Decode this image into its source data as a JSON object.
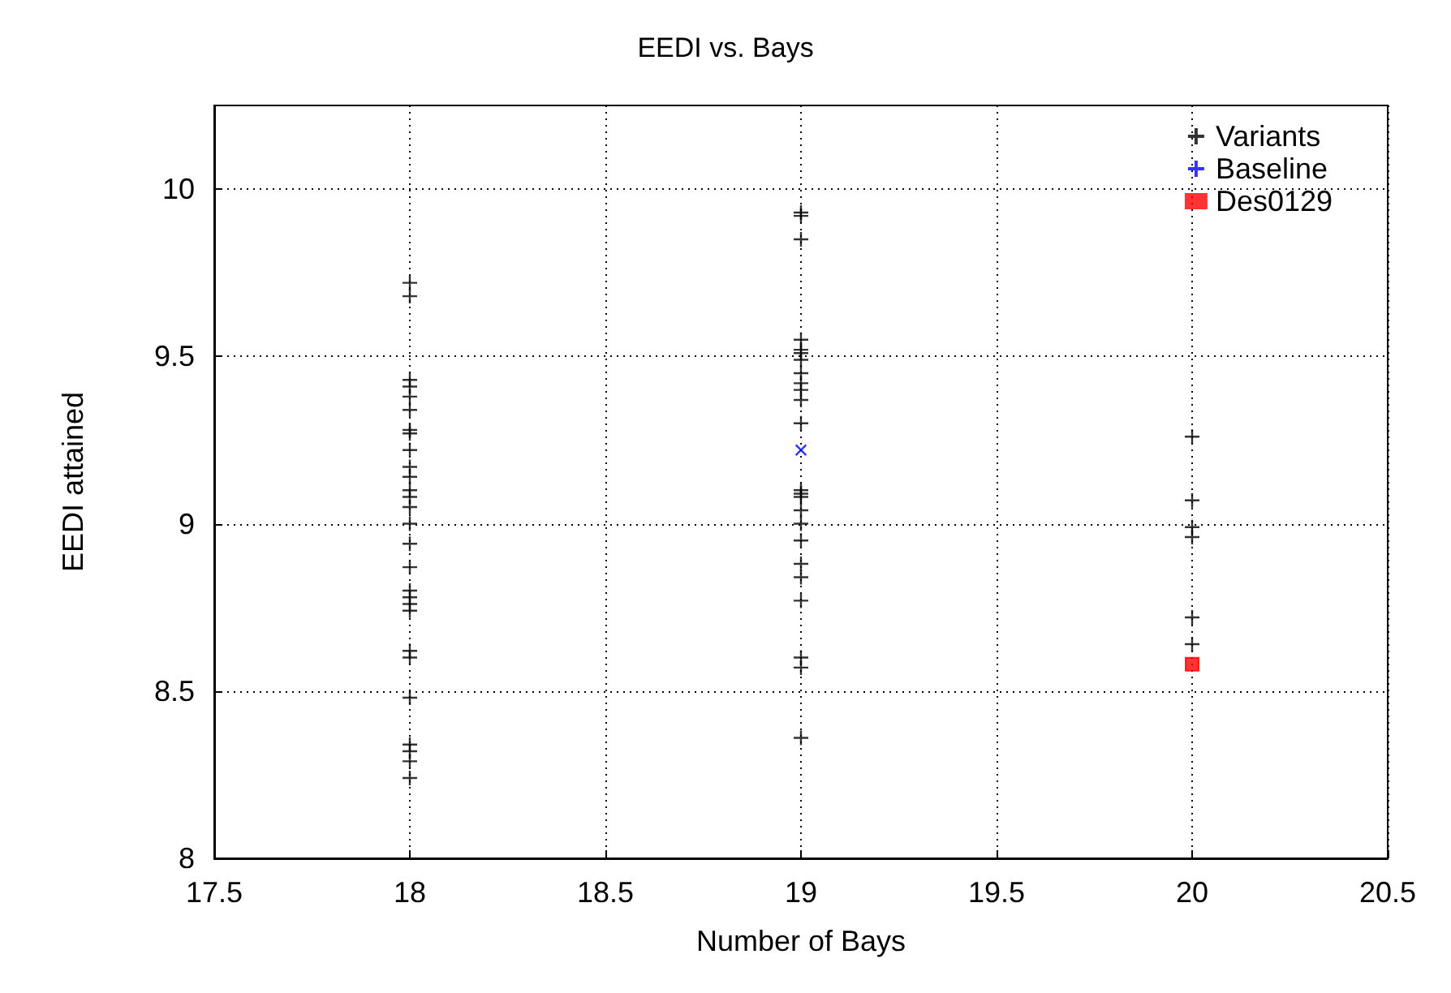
{
  "chart_data": {
    "type": "scatter",
    "title": "EEDI vs. Bays",
    "xlabel": "Number of Bays",
    "ylabel": "EEDI attained",
    "xlim": [
      17.5,
      20.5
    ],
    "xticks": [
      17.5,
      18,
      18.5,
      19,
      19.5,
      20,
      20.5
    ],
    "ylim": [
      8,
      10.25
    ],
    "yticks": [
      8,
      8.5,
      9,
      9.5,
      10
    ],
    "grid": true,
    "legend": "top right",
    "series": [
      {
        "name": "Variants",
        "color": "#000000",
        "marker": "cross",
        "x": [
          18,
          18,
          18,
          18,
          18,
          18,
          18,
          18,
          18,
          18,
          18,
          18,
          18,
          18,
          18,
          18,
          18,
          18,
          18,
          18,
          18,
          18,
          18,
          18,
          18,
          18,
          18,
          18,
          19,
          19,
          19,
          19,
          19,
          19,
          19,
          19,
          19,
          19,
          19,
          19,
          19,
          19,
          19,
          19,
          19,
          19,
          19,
          19,
          19,
          19,
          19,
          19,
          20,
          20,
          20,
          20,
          20,
          20
        ],
        "values": [
          9.72,
          9.68,
          9.43,
          9.41,
          9.38,
          9.34,
          9.28,
          9.27,
          9.22,
          9.17,
          9.14,
          9.1,
          9.08,
          9.05,
          9,
          8.94,
          8.87,
          8.8,
          8.78,
          8.76,
          8.74,
          8.62,
          8.6,
          8.48,
          8.34,
          8.32,
          8.29,
          8.24,
          9.93,
          9.92,
          9.85,
          9.55,
          9.52,
          9.51,
          9.49,
          9.45,
          9.42,
          9.4,
          9.37,
          9.3,
          9.1,
          9.09,
          9.08,
          9.04,
          9,
          8.95,
          8.88,
          8.84,
          8.77,
          8.6,
          8.57,
          8.36,
          9.26,
          9.07,
          8.99,
          8.96,
          8.72,
          8.64
        ]
      },
      {
        "name": "Baseline",
        "color": "#0000ff",
        "marker": "cross",
        "x": [
          19
        ],
        "values": [
          9.22
        ]
      },
      {
        "name": "Des0129",
        "color": "#ff0000",
        "marker": "square",
        "x": [
          20
        ],
        "values": [
          8.58
        ]
      }
    ]
  }
}
